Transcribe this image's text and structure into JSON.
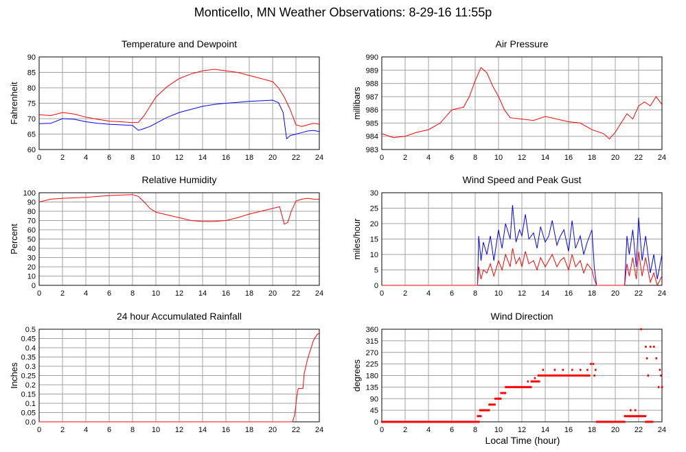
{
  "title": "Monticello, MN Weather Observations: 8-29-16 11:55p",
  "xlabel_footer": "Local Time (hour)",
  "colors": {
    "red": "#ff0000",
    "blue": "#0000ff",
    "grid": "#a0a0a0"
  },
  "chart_data": [
    {
      "id": "temp",
      "type": "line",
      "title": "Temperature and Dewpoint",
      "xlabel": "",
      "ylabel": "Fahrenheit",
      "xlim": [
        0,
        24
      ],
      "ylim": [
        60,
        90
      ],
      "xticks": [
        0,
        2,
        4,
        6,
        8,
        10,
        12,
        14,
        16,
        18,
        20,
        22,
        24
      ],
      "yticks": [
        60,
        65,
        70,
        75,
        80,
        85,
        90
      ],
      "grid": true,
      "series": [
        {
          "color": "#ff0000",
          "x": [
            0,
            1,
            2,
            3,
            4,
            5,
            6,
            7,
            8,
            8.5,
            9,
            9.5,
            10,
            11,
            12,
            13,
            14,
            15,
            16,
            17,
            18,
            19,
            20,
            20.5,
            21,
            21.5,
            22,
            22.5,
            23,
            23.5,
            24
          ],
          "y": [
            71.3,
            71,
            72,
            71.5,
            70.5,
            69.8,
            69.2,
            69,
            68.7,
            68.8,
            71,
            74,
            77,
            80.5,
            83,
            84.5,
            85.5,
            86,
            85.5,
            85,
            84,
            83,
            82,
            80,
            77,
            73,
            68,
            67.5,
            68,
            68.5,
            68.2
          ]
        },
        {
          "color": "#0000ff",
          "x": [
            0,
            1,
            2,
            3,
            4,
            5,
            6,
            7,
            8,
            8.5,
            9,
            9.5,
            10,
            11,
            12,
            13,
            14,
            15,
            16,
            17,
            18,
            19,
            20,
            20.5,
            20.9,
            21.2,
            21.5,
            22,
            22.5,
            23,
            23.5,
            24
          ],
          "y": [
            68.4,
            68.5,
            70,
            69.8,
            69,
            68.5,
            68.2,
            68,
            67.8,
            66.2,
            66.8,
            67.5,
            68.5,
            70.5,
            72,
            73,
            74,
            74.6,
            75,
            75.3,
            75.6,
            75.8,
            76,
            75.2,
            72,
            63.5,
            64.5,
            65,
            65.5,
            66,
            66.2,
            65.8
          ]
        }
      ]
    },
    {
      "id": "pressure",
      "type": "line",
      "title": "Air Pressure",
      "xlabel": "",
      "ylabel": "millibars",
      "xlim": [
        0,
        24
      ],
      "ylim": [
        983,
        990
      ],
      "xticks": [
        0,
        2,
        4,
        6,
        8,
        10,
        12,
        14,
        16,
        18,
        20,
        22,
        24
      ],
      "yticks": [
        983,
        984,
        985,
        986,
        987,
        988,
        989,
        990
      ],
      "grid": true,
      "series": [
        {
          "color": "#ff0000",
          "x": [
            0,
            1,
            2,
            3,
            4,
            5,
            6,
            7,
            7.5,
            8,
            8.5,
            9,
            9.5,
            10,
            10.5,
            11,
            12,
            13,
            14,
            15,
            16,
            17,
            18,
            19,
            19.5,
            20,
            20.5,
            21,
            21.5,
            22,
            22.5,
            23,
            23.5,
            24
          ],
          "y": [
            984.2,
            983.9,
            984,
            984.3,
            984.5,
            985,
            986,
            986.2,
            987,
            988.2,
            989.2,
            988.8,
            987.8,
            987,
            986,
            985.4,
            985.3,
            985.2,
            985.5,
            985.3,
            985.1,
            985,
            984.5,
            984.2,
            983.8,
            984.3,
            985,
            985.7,
            985.3,
            986.3,
            986.6,
            986.3,
            987,
            986.4
          ]
        }
      ]
    },
    {
      "id": "humidity",
      "type": "line",
      "title": "Relative Humidity",
      "xlabel": "",
      "ylabel": "Percent",
      "xlim": [
        0,
        24
      ],
      "ylim": [
        0,
        100
      ],
      "xticks": [
        0,
        2,
        4,
        6,
        8,
        10,
        12,
        14,
        16,
        18,
        20,
        22,
        24
      ],
      "yticks": [
        0,
        10,
        20,
        30,
        40,
        50,
        60,
        70,
        80,
        90,
        100
      ],
      "grid": true,
      "series": [
        {
          "color": "#ff0000",
          "x": [
            0,
            1,
            2,
            3,
            4,
            5,
            6,
            7,
            8,
            8.5,
            9,
            9.5,
            10,
            11,
            12,
            13,
            14,
            15,
            16,
            17,
            18,
            19,
            20,
            20.6,
            21,
            21.3,
            21.6,
            22,
            22.5,
            23,
            23.5,
            24
          ],
          "y": [
            90,
            93,
            94,
            94.5,
            95,
            96,
            97,
            97.5,
            98,
            96,
            90,
            83,
            79,
            76,
            73,
            70,
            69,
            69,
            70,
            73,
            77,
            80,
            83,
            85,
            66,
            68,
            80,
            91,
            93,
            94,
            93,
            93
          ]
        }
      ]
    },
    {
      "id": "wind",
      "type": "line",
      "title": "Wind Speed and Peak Gust",
      "xlabel": "",
      "ylabel": "miles/hour",
      "xlim": [
        0,
        24
      ],
      "ylim": [
        0,
        30
      ],
      "xticks": [
        0,
        2,
        4,
        6,
        8,
        10,
        12,
        14,
        16,
        18,
        20,
        22,
        24
      ],
      "yticks": [
        0,
        5,
        10,
        15,
        20,
        25,
        30
      ],
      "grid": true,
      "series": [
        {
          "color": "#0000ff",
          "x": [
            0,
            8.2,
            8.3,
            8.5,
            8.7,
            9,
            9.3,
            9.6,
            10,
            10.3,
            10.6,
            11,
            11.2,
            11.5,
            11.8,
            12,
            12.3,
            12.6,
            13,
            13.3,
            13.6,
            14,
            14.3,
            14.6,
            15,
            15.3,
            15.6,
            16,
            16.3,
            16.6,
            17,
            17.3,
            17.6,
            18,
            18.2,
            18.4,
            18.6,
            20.8,
            21,
            21.2,
            21.5,
            21.8,
            22,
            22.3,
            22.6,
            23,
            23.3,
            23.6,
            24
          ],
          "y": [
            0,
            0,
            16,
            8,
            14,
            10,
            16,
            8,
            18,
            12,
            20,
            15,
            26,
            14,
            18,
            16,
            23,
            15,
            17,
            12,
            19,
            14,
            16,
            21,
            13,
            16,
            18,
            11,
            21,
            12,
            16,
            10,
            14,
            18,
            6,
            0,
            0,
            0,
            16,
            10,
            18,
            6,
            22,
            8,
            16,
            4,
            10,
            2,
            10
          ]
        },
        {
          "color": "#ff0000",
          "x": [
            0,
            8.2,
            8.3,
            8.5,
            8.7,
            9,
            9.3,
            9.6,
            10,
            10.3,
            10.6,
            11,
            11.2,
            11.5,
            11.8,
            12,
            12.3,
            12.6,
            13,
            13.3,
            13.6,
            14,
            14.3,
            14.6,
            15,
            15.3,
            15.6,
            16,
            16.3,
            16.6,
            17,
            17.3,
            17.6,
            18,
            18.2,
            18.4,
            18.6,
            20.8,
            21,
            21.2,
            21.5,
            21.8,
            22,
            22.3,
            22.6,
            23,
            23.3,
            23.6,
            24
          ],
          "y": [
            0,
            0,
            6,
            2,
            5,
            4,
            7,
            3,
            8,
            5,
            10,
            6,
            12,
            7,
            9,
            6,
            11,
            7,
            8,
            5,
            9,
            6,
            8,
            10,
            6,
            8,
            9,
            5,
            10,
            6,
            8,
            4,
            7,
            5,
            2,
            0,
            0,
            0,
            7,
            3,
            9,
            2,
            11,
            3,
            9,
            1,
            4,
            0,
            3
          ]
        }
      ]
    },
    {
      "id": "rain",
      "type": "line",
      "title": "24 hour Accumulated Rainfall",
      "xlabel": "",
      "ylabel": "Inches",
      "xlim": [
        0,
        24
      ],
      "ylim": [
        0,
        0.5
      ],
      "xticks": [
        0,
        2,
        4,
        6,
        8,
        10,
        12,
        14,
        16,
        18,
        20,
        22,
        24
      ],
      "yticks": [
        0.0,
        0.05,
        0.1,
        0.15,
        0.2,
        0.25,
        0.3,
        0.35,
        0.4,
        0.45,
        0.5
      ],
      "ytick_labels": [
        "0.0",
        "0.05",
        "0.1",
        "0.15",
        "0.2",
        "0.25",
        "0.3",
        "0.35",
        "0.4",
        "0.45",
        "0.5"
      ],
      "grid": true,
      "series": [
        {
          "color": "#ff0000",
          "x": [
            0,
            21.7,
            21.9,
            22.1,
            22.2,
            22.6,
            22.7,
            23,
            23.3,
            23.5,
            23.8,
            24
          ],
          "y": [
            0,
            0,
            0.04,
            0.15,
            0.18,
            0.18,
            0.26,
            0.34,
            0.4,
            0.44,
            0.47,
            0.48
          ]
        }
      ]
    },
    {
      "id": "direction",
      "type": "scatter",
      "title": "Wind Direction",
      "xlabel": "Local Time (hour)",
      "ylabel": "degrees",
      "xlim": [
        0,
        24
      ],
      "ylim": [
        0,
        360
      ],
      "xticks": [
        0,
        2,
        4,
        6,
        8,
        10,
        12,
        14,
        16,
        18,
        20,
        22,
        24
      ],
      "yticks": [
        0,
        45,
        90,
        135,
        180,
        225,
        270,
        315,
        360
      ],
      "grid": true,
      "series": [
        {
          "color": "#ff0000",
          "runs": [
            [
              0,
              8.2,
              0
            ],
            [
              8.2,
              8.5,
              22
            ],
            [
              8.4,
              8.7,
              45
            ],
            [
              8.7,
              9.2,
              45
            ],
            [
              9.2,
              9.7,
              67
            ],
            [
              9.7,
              10.2,
              90
            ],
            [
              10.2,
              10.6,
              112
            ],
            [
              10.6,
              12.8,
              135
            ],
            [
              12.8,
              13.5,
              157
            ],
            [
              13.5,
              16,
              180
            ],
            [
              16,
              17.8,
              180
            ],
            [
              18.4,
              20.8,
              0
            ],
            [
              20.8,
              21.2,
              22
            ],
            [
              21.2,
              22.6,
              22
            ],
            [
              22.6,
              23.2,
              0
            ]
          ],
          "points": [
            [
              8.3,
              0
            ],
            [
              9.2,
              67
            ],
            [
              10.0,
              90
            ],
            [
              11.5,
              135
            ],
            [
              12.5,
              157
            ],
            [
              13.1,
              170
            ],
            [
              13.4,
              180
            ],
            [
              13.8,
              202
            ],
            [
              14.3,
              180
            ],
            [
              14.8,
              202
            ],
            [
              15.2,
              180
            ],
            [
              15.5,
              202
            ],
            [
              16.3,
              202
            ],
            [
              16.6,
              180
            ],
            [
              17.0,
              202
            ],
            [
              17.3,
              180
            ],
            [
              17.6,
              202
            ],
            [
              17.9,
              225
            ],
            [
              18.1,
              225
            ],
            [
              18.2,
              180
            ],
            [
              18.3,
              202
            ],
            [
              21.3,
              45
            ],
            [
              21.7,
              45
            ],
            [
              22.2,
              360
            ],
            [
              22.6,
              292
            ],
            [
              22.7,
              247
            ],
            [
              22.8,
              180
            ],
            [
              23.0,
              292
            ],
            [
              23.3,
              292
            ],
            [
              23.5,
              247
            ],
            [
              23.7,
              135
            ],
            [
              23.8,
              202
            ],
            [
              23.9,
              180
            ],
            [
              24.0,
              135
            ]
          ]
        }
      ]
    }
  ]
}
